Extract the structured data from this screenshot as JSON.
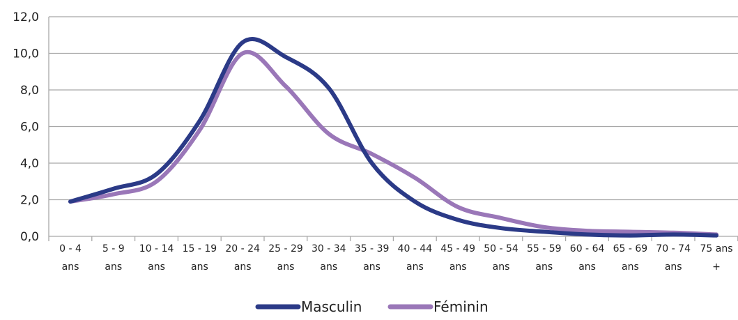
{
  "chart_data": {
    "type": "line",
    "title": "",
    "xlabel": "",
    "ylabel": "",
    "ylim": [
      0,
      12
    ],
    "yticks": [
      "0,0",
      "2,0",
      "4,0",
      "6,0",
      "8,0",
      "10,0",
      "12,0"
    ],
    "categories": [
      {
        "line1": "0 - 4",
        "line2": "ans"
      },
      {
        "line1": "5 - 9",
        "line2": "ans"
      },
      {
        "line1": "10 - 14",
        "line2": "ans"
      },
      {
        "line1": "15 - 19",
        "line2": "ans"
      },
      {
        "line1": "20 - 24",
        "line2": "ans"
      },
      {
        "line1": "25 - 29",
        "line2": "ans"
      },
      {
        "line1": "30 - 34",
        "line2": "ans"
      },
      {
        "line1": "35 - 39",
        "line2": "ans"
      },
      {
        "line1": "40 - 44",
        "line2": "ans"
      },
      {
        "line1": "45 - 49",
        "line2": "ans"
      },
      {
        "line1": "50 - 54",
        "line2": "ans"
      },
      {
        "line1": "55 - 59",
        "line2": "ans"
      },
      {
        "line1": "60 - 64",
        "line2": "ans"
      },
      {
        "line1": "65 - 69",
        "line2": "ans"
      },
      {
        "line1": "70 - 74",
        "line2": "ans"
      },
      {
        "line1": "75 ans",
        "line2": "+"
      }
    ],
    "series": [
      {
        "name": "Masculin",
        "color": "#2b3a87",
        "values": [
          1.9,
          2.6,
          3.4,
          6.3,
          10.6,
          9.8,
          8.1,
          4.0,
          1.9,
          0.9,
          0.45,
          0.25,
          0.1,
          0.05,
          0.1,
          0.05
        ]
      },
      {
        "name": "Féminin",
        "color": "#9a77b8",
        "values": [
          1.9,
          2.3,
          3.0,
          5.8,
          10.0,
          8.2,
          5.6,
          4.5,
          3.2,
          1.6,
          1.0,
          0.5,
          0.3,
          0.25,
          0.2,
          0.1
        ]
      }
    ],
    "grid": true,
    "legend_position": "bottom-center"
  }
}
